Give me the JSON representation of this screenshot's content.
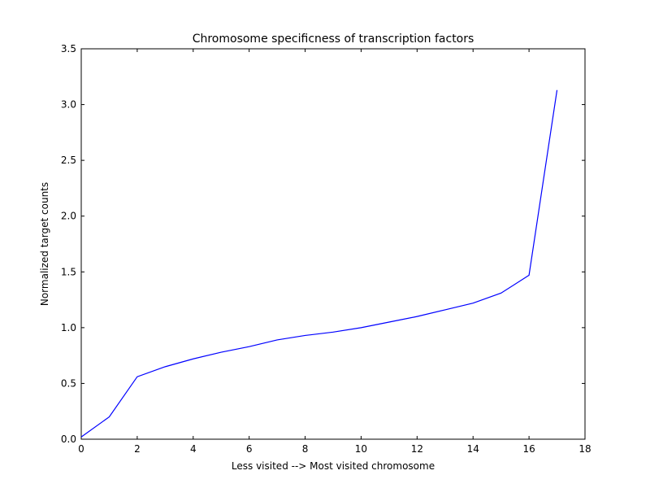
{
  "chart_data": {
    "type": "line",
    "title": "Chromosome specificness of transcription factors",
    "xlabel": "Less visited --> Most visited chromosome",
    "ylabel": "Normalized target counts",
    "xlim": [
      0,
      18
    ],
    "ylim": [
      0,
      3.5
    ],
    "xticks": [
      0,
      2,
      4,
      6,
      8,
      10,
      12,
      14,
      16,
      18
    ],
    "xtick_labels": [
      "0",
      "2",
      "4",
      "6",
      "8",
      "10",
      "12",
      "14",
      "16",
      "18"
    ],
    "yticks": [
      0,
      0.5,
      1,
      1.5,
      2,
      2.5,
      3,
      3.5
    ],
    "ytick_labels": [
      "0.0",
      "0.5",
      "1.0",
      "1.5",
      "2.0",
      "2.5",
      "3.0",
      "3.5"
    ],
    "grid": false,
    "series": [
      {
        "color": "#0000ff",
        "x": [
          0,
          1,
          2,
          3,
          4,
          5,
          6,
          7,
          8,
          9,
          10,
          11,
          12,
          13,
          14,
          15,
          16,
          17
        ],
        "y": [
          0.02,
          0.2,
          0.56,
          0.65,
          0.72,
          0.78,
          0.83,
          0.89,
          0.93,
          0.96,
          1.0,
          1.05,
          1.1,
          1.16,
          1.22,
          1.31,
          1.47,
          3.13
        ]
      }
    ]
  }
}
